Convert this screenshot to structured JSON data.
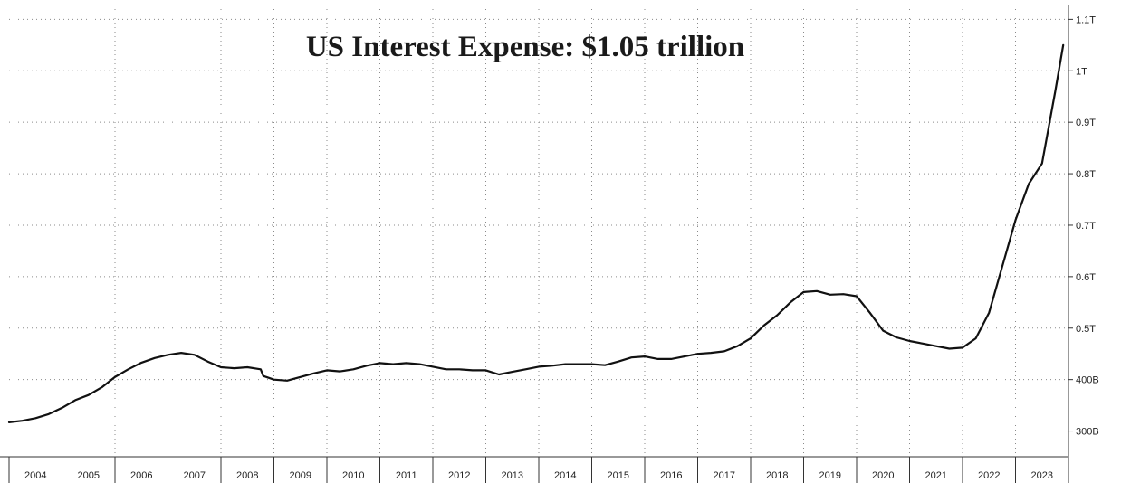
{
  "chart_data": {
    "type": "line",
    "title": "US Interest Expense: $1.05 trillion",
    "xlabel": "",
    "ylabel": "",
    "y_unit": "USD",
    "x_range": [
      2004,
      2024
    ],
    "ylim": [
      250000000000,
      1120000000000
    ],
    "y_scale": "linear",
    "y_axis_position": "right",
    "grid": true,
    "legend": "none",
    "x_tick_labels": [
      "2004",
      "2005",
      "2006",
      "2007",
      "2008",
      "2009",
      "2010",
      "2011",
      "2012",
      "2013",
      "2014",
      "2015",
      "2016",
      "2017",
      "2018",
      "2019",
      "2020",
      "2021",
      "2022",
      "2023"
    ],
    "y_ticks": [
      {
        "value": 300000000000,
        "label": "300B"
      },
      {
        "value": 400000000000,
        "label": "400B"
      },
      {
        "value": 500000000000,
        "label": "0.5T"
      },
      {
        "value": 600000000000,
        "label": "0.6T"
      },
      {
        "value": 700000000000,
        "label": "0.7T"
      },
      {
        "value": 800000000000,
        "label": "0.8T"
      },
      {
        "value": 900000000000,
        "label": "0.9T"
      },
      {
        "value": 1000000000000,
        "label": "1T"
      },
      {
        "value": 1100000000000,
        "label": "1.1T"
      }
    ],
    "series": [
      {
        "color": "#111111",
        "x": [
          2004.0,
          2004.25,
          2004.5,
          2004.75,
          2005.0,
          2005.25,
          2005.5,
          2005.75,
          2006.0,
          2006.25,
          2006.5,
          2006.75,
          2007.0,
          2007.25,
          2007.5,
          2007.75,
          2008.0,
          2008.25,
          2008.5,
          2008.75,
          2008.8,
          2009.0,
          2009.25,
          2009.5,
          2009.75,
          2010.0,
          2010.25,
          2010.5,
          2010.75,
          2011.0,
          2011.25,
          2011.5,
          2011.75,
          2012.0,
          2012.25,
          2012.5,
          2012.75,
          2013.0,
          2013.25,
          2013.5,
          2013.75,
          2014.0,
          2014.25,
          2014.5,
          2014.75,
          2015.0,
          2015.25,
          2015.5,
          2015.75,
          2016.0,
          2016.25,
          2016.5,
          2016.75,
          2017.0,
          2017.25,
          2017.5,
          2017.75,
          2018.0,
          2018.25,
          2018.5,
          2018.75,
          2019.0,
          2019.25,
          2019.5,
          2019.75,
          2020.0,
          2020.25,
          2020.5,
          2020.75,
          2021.0,
          2021.25,
          2021.5,
          2021.75,
          2022.0,
          2022.25,
          2022.5,
          2022.75,
          2023.0,
          2023.25,
          2023.5,
          2023.75,
          2023.9
        ],
        "y": [
          317000000000.0,
          320000000000.0,
          325000000000.0,
          333000000000.0,
          345000000000.0,
          360000000000.0,
          370000000000.0,
          385000000000.0,
          405000000000.0,
          420000000000.0,
          433000000000.0,
          442000000000.0,
          448000000000.0,
          452000000000.0,
          448000000000.0,
          435000000000.0,
          424000000000.0,
          422000000000.0,
          424000000000.0,
          420000000000.0,
          407000000000.0,
          400000000000.0,
          398000000000.0,
          405000000000.0,
          412000000000.0,
          418000000000.0,
          416000000000.0,
          420000000000.0,
          427000000000.0,
          432000000000.0,
          430000000000.0,
          432000000000.0,
          430000000000.0,
          425000000000.0,
          420000000000.0,
          420000000000.0,
          418000000000.0,
          418000000000.0,
          410000000000.0,
          415000000000.0,
          420000000000.0,
          425000000000.0,
          427000000000.0,
          430000000000.0,
          430000000000.0,
          430000000000.0,
          428000000000.0,
          435000000000.0,
          443000000000.0,
          445000000000.0,
          440000000000.0,
          440000000000.0,
          445000000000.0,
          450000000000.0,
          452000000000.0,
          455000000000.0,
          465000000000.0,
          480000000000.0,
          505000000000.0,
          525000000000.0,
          550000000000.0,
          570000000000.0,
          572000000000.0,
          565000000000.0,
          566000000000.0,
          562000000000.0,
          530000000000.0,
          495000000000.0,
          482000000000.0,
          475000000000.0,
          470000000000.0,
          465000000000.0,
          460000000000.0,
          462000000000.0,
          480000000000.0,
          530000000000.0,
          620000000000.0,
          710000000000.0,
          780000000000.0,
          820000000000.0,
          960000000000.0,
          1050000000000.0
        ]
      }
    ]
  }
}
